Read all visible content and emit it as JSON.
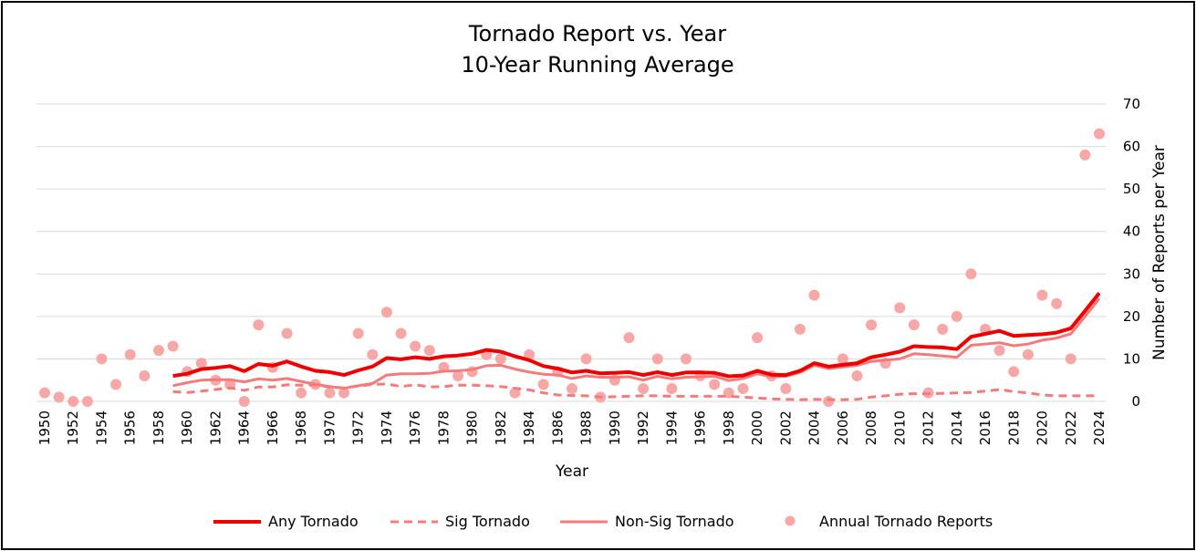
{
  "chart_data": {
    "type": "line",
    "title": "Tornado Report vs. Year",
    "subtitle": "10-Year Running Average",
    "xlabel": "Year",
    "ylabel": "Number of Reports per Year",
    "y_axis_position": "right",
    "ylim": [
      0,
      70
    ],
    "yticks": [
      0,
      10,
      20,
      30,
      40,
      50,
      60,
      70
    ],
    "xlim": [
      1950,
      2024
    ],
    "xticks": [
      1950,
      1952,
      1954,
      1956,
      1958,
      1960,
      1962,
      1964,
      1966,
      1968,
      1970,
      1972,
      1974,
      1976,
      1978,
      1980,
      1982,
      1984,
      1986,
      1988,
      1990,
      1992,
      1994,
      1996,
      1998,
      2000,
      2002,
      2004,
      2006,
      2008,
      2010,
      2012,
      2014,
      2016,
      2018,
      2020,
      2022,
      2024
    ],
    "grid": true,
    "legend_position": "bottom",
    "colors": {
      "any": "#ee0000",
      "sig": "#f37b7b",
      "nonsig": "#f37b7b",
      "annual": "#f8a7a7",
      "grid": "#d9d9d9"
    },
    "annual": {
      "name": "Annual Tornado Reports",
      "x": [
        1950,
        1951,
        1952,
        1953,
        1954,
        1955,
        1956,
        1957,
        1958,
        1959,
        1960,
        1961,
        1962,
        1963,
        1964,
        1965,
        1966,
        1967,
        1968,
        1969,
        1970,
        1971,
        1972,
        1973,
        1974,
        1975,
        1976,
        1977,
        1978,
        1979,
        1980,
        1981,
        1982,
        1983,
        1984,
        1985,
        1986,
        1987,
        1988,
        1989,
        1990,
        1991,
        1992,
        1993,
        1994,
        1995,
        1996,
        1997,
        1998,
        1999,
        2000,
        2001,
        2002,
        2003,
        2004,
        2005,
        2006,
        2007,
        2008,
        2009,
        2010,
        2011,
        2012,
        2013,
        2014,
        2015,
        2016,
        2017,
        2018,
        2019,
        2020,
        2021,
        2022,
        2023,
        2024
      ],
      "y": [
        2,
        1,
        0,
        0,
        10,
        4,
        11,
        6,
        12,
        13,
        7,
        9,
        5,
        4,
        0,
        18,
        8,
        16,
        2,
        4,
        2,
        2,
        16,
        11,
        21,
        16,
        13,
        12,
        8,
        6,
        7,
        11,
        10,
        2,
        11,
        4,
        7,
        3,
        10,
        1,
        5,
        15,
        3,
        10,
        3,
        10,
        6,
        4,
        2,
        3,
        15,
        6,
        3,
        17,
        25,
        0,
        10,
        6,
        18,
        9,
        22,
        18,
        2,
        17,
        20,
        30,
        17,
        12,
        7,
        11,
        25,
        23,
        10,
        58,
        63
      ]
    },
    "series": [
      {
        "name": "Any Tornado",
        "dash": "solid",
        "x": [
          1959,
          1960,
          1961,
          1962,
          1963,
          1964,
          1965,
          1966,
          1967,
          1968,
          1969,
          1970,
          1971,
          1972,
          1973,
          1974,
          1975,
          1976,
          1977,
          1978,
          1979,
          1980,
          1981,
          1982,
          1983,
          1984,
          1985,
          1986,
          1987,
          1988,
          1989,
          1990,
          1991,
          1992,
          1993,
          1994,
          1995,
          1996,
          1997,
          1998,
          1999,
          2000,
          2001,
          2002,
          2003,
          2004,
          2005,
          2006,
          2007,
          2008,
          2009,
          2010,
          2011,
          2012,
          2013,
          2014,
          2015,
          2016,
          2017,
          2018,
          2019,
          2020,
          2021,
          2022,
          2023,
          2024
        ],
        "values": [
          6.0,
          6.5,
          7.6,
          7.9,
          8.3,
          7.1,
          8.8,
          8.4,
          9.4,
          8.2,
          7.2,
          6.9,
          6.2,
          7.3,
          8.2,
          10.2,
          9.9,
          10.4,
          10.0,
          10.6,
          10.8,
          11.2,
          12.1,
          11.7,
          10.6,
          9.7,
          8.3,
          7.7,
          6.8,
          7.2,
          6.6,
          6.7,
          6.9,
          6.2,
          6.9,
          6.2,
          6.8,
          6.8,
          6.7,
          5.9,
          6.1,
          7.2,
          6.3,
          6.2,
          7.2,
          9.0,
          8.2,
          8.6,
          9.0,
          10.4,
          11.0,
          11.7,
          13.0,
          12.8,
          12.7,
          12.3,
          15.2,
          15.9,
          16.6,
          15.4,
          15.6,
          15.8,
          16.2,
          17.2,
          21.3,
          25.5
        ]
      },
      {
        "name": "Sig Tornado",
        "dash": "dashed",
        "x": [
          1959,
          1960,
          1961,
          1962,
          1963,
          1964,
          1965,
          1966,
          1967,
          1968,
          1969,
          1970,
          1971,
          1972,
          1973,
          1974,
          1975,
          1976,
          1977,
          1978,
          1979,
          1980,
          1981,
          1982,
          1983,
          1984,
          1985,
          1986,
          1987,
          1988,
          1989,
          1990,
          1991,
          1992,
          1993,
          1994,
          1995,
          1996,
          1997,
          1998,
          1999,
          2000,
          2001,
          2002,
          2003,
          2004,
          2005,
          2006,
          2007,
          2008,
          2009,
          2010,
          2011,
          2012,
          2013,
          2014,
          2015,
          2016,
          2017,
          2018,
          2019,
          2020,
          2021,
          2022,
          2023,
          2024
        ],
        "values": [
          2.3,
          2.1,
          2.4,
          2.8,
          3.2,
          2.6,
          3.4,
          3.4,
          3.9,
          3.8,
          3.9,
          3.4,
          3.2,
          3.6,
          4.0,
          4.1,
          3.5,
          3.9,
          3.4,
          3.5,
          3.8,
          3.8,
          3.7,
          3.5,
          3.1,
          2.7,
          2.0,
          1.5,
          1.4,
          1.3,
          1.0,
          1.1,
          1.2,
          1.3,
          1.3,
          1.2,
          1.2,
          1.2,
          1.2,
          1.2,
          1.0,
          0.8,
          0.6,
          0.5,
          0.4,
          0.5,
          0.4,
          0.4,
          0.5,
          1.0,
          1.3,
          1.7,
          1.8,
          1.8,
          1.9,
          2.0,
          2.1,
          2.4,
          2.8,
          2.3,
          2.0,
          1.5,
          1.3,
          1.3,
          1.3,
          1.3
        ]
      },
      {
        "name": "Non-Sig Tornado",
        "dash": "solid",
        "x": [
          1959,
          1960,
          1961,
          1962,
          1963,
          1964,
          1965,
          1966,
          1967,
          1968,
          1969,
          1970,
          1971,
          1972,
          1973,
          1974,
          1975,
          1976,
          1977,
          1978,
          1979,
          1980,
          1981,
          1982,
          1983,
          1984,
          1985,
          1986,
          1987,
          1988,
          1989,
          1990,
          1991,
          1992,
          1993,
          1994,
          1995,
          1996,
          1997,
          1998,
          1999,
          2000,
          2001,
          2002,
          2003,
          2004,
          2005,
          2006,
          2007,
          2008,
          2009,
          2010,
          2011,
          2012,
          2013,
          2014,
          2015,
          2016,
          2017,
          2018,
          2019,
          2020,
          2021,
          2022,
          2023,
          2024
        ],
        "values": [
          3.7,
          4.4,
          5.0,
          5.1,
          5.1,
          4.6,
          5.3,
          5.0,
          5.4,
          4.7,
          4.0,
          3.5,
          3.1,
          3.7,
          4.2,
          6.2,
          6.5,
          6.5,
          6.6,
          7.1,
          7.2,
          7.5,
          8.4,
          8.5,
          7.6,
          6.9,
          6.4,
          6.2,
          5.4,
          6.0,
          5.7,
          5.7,
          5.8,
          5.0,
          5.9,
          5.3,
          5.7,
          5.8,
          5.9,
          4.9,
          5.4,
          6.5,
          5.8,
          5.9,
          6.8,
          8.5,
          7.7,
          8.1,
          8.5,
          9.4,
          9.7,
          10.0,
          11.2,
          11.0,
          10.7,
          10.4,
          13.2,
          13.5,
          13.8,
          13.1,
          13.5,
          14.4,
          14.9,
          15.9,
          20.0,
          24.2
        ]
      }
    ],
    "legend": [
      {
        "label": "Any Tornado",
        "style": "thick-solid"
      },
      {
        "label": "Sig Tornado",
        "style": "dashed"
      },
      {
        "label": "Non-Sig Tornado",
        "style": "thin-solid"
      },
      {
        "label": "Annual Tornado Reports",
        "style": "dot"
      }
    ]
  }
}
